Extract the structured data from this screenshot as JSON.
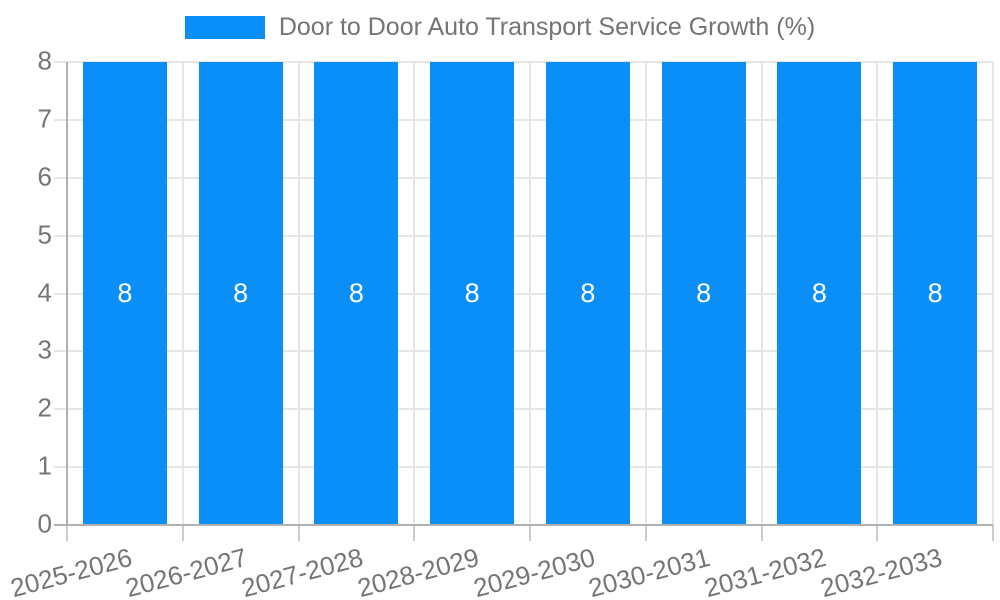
{
  "chart_data": {
    "type": "bar",
    "title": "Door to Door Auto Transport Service Growth (%)",
    "categories": [
      "2025-2026",
      "2026-2027",
      "2027-2028",
      "2028-2029",
      "2029-2030",
      "2030-2031",
      "2031-2032",
      "2032-2033"
    ],
    "values": [
      8,
      8,
      8,
      8,
      8,
      8,
      8,
      8
    ],
    "bar_labels": [
      "8",
      "8",
      "8",
      "8",
      "8",
      "8",
      "8",
      "8"
    ],
    "xlabel": "",
    "ylabel": "",
    "ylim": [
      0,
      8
    ],
    "yticks": [
      0,
      1,
      2,
      3,
      4,
      5,
      6,
      7,
      8
    ],
    "grid": true,
    "legend_position": "top",
    "x_label_rotation_deg": -15,
    "colors": {
      "bar": "#0a8ff9",
      "grid_line": "#e6e6e6",
      "tick_line": "#cccccc",
      "axis_line": "#b0b0b0",
      "axis_text": "#757575",
      "legend_text": "#757575",
      "bar_label_text": "#ffffff",
      "background": "#ffffff"
    }
  }
}
